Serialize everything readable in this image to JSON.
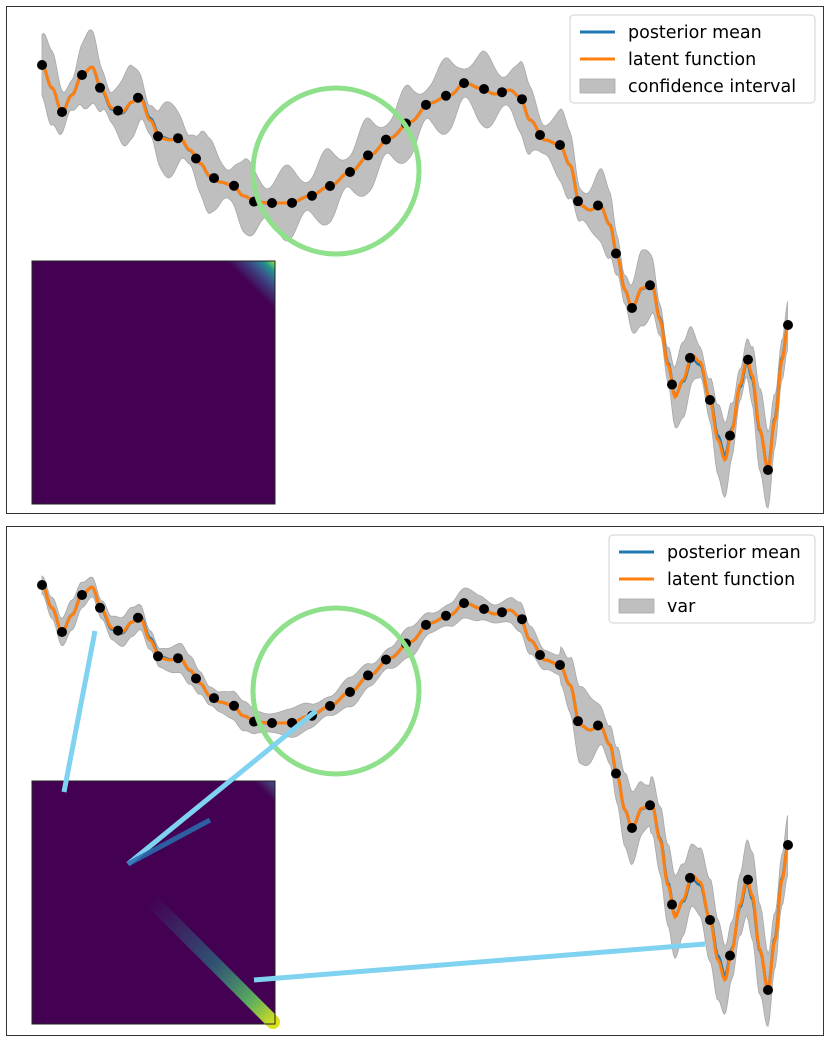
{
  "chart_data": [
    {
      "type": "line",
      "title": "",
      "xlabel": "",
      "ylabel": "",
      "grid": false,
      "axes_visible": false,
      "legend_position": "top-right",
      "series": [
        {
          "name": "posterior mean",
          "color": "#1f77b4"
        },
        {
          "name": "latent function",
          "color": "#ff7f0e"
        }
      ],
      "band": {
        "name": "confidence interval",
        "color": "#bfbfbf",
        "width_profile": "wide-oscillating"
      },
      "observations_color": "#000000",
      "highlight_circle_color": "#8ee08a",
      "inset": {
        "type": "heatmap",
        "colormap": "viridis",
        "pattern": "uniform-diagonal-band"
      },
      "connector_lines": false
    },
    {
      "type": "line",
      "title": "",
      "xlabel": "",
      "ylabel": "",
      "grid": false,
      "axes_visible": false,
      "legend_position": "top-right",
      "series": [
        {
          "name": "posterior mean",
          "color": "#1f77b4"
        },
        {
          "name": "latent function",
          "color": "#ff7f0e"
        }
      ],
      "band": {
        "name": "var",
        "color": "#bfbfbf",
        "width_profile": "narrow-smooth"
      },
      "observations_color": "#000000",
      "highlight_circle_color": "#8ee08a",
      "inset": {
        "type": "heatmap",
        "colormap": "viridis",
        "pattern": "diagonal-band-brighter-toward-end"
      },
      "connector_lines": true,
      "connector_color": "#7fd3f0"
    }
  ]
}
